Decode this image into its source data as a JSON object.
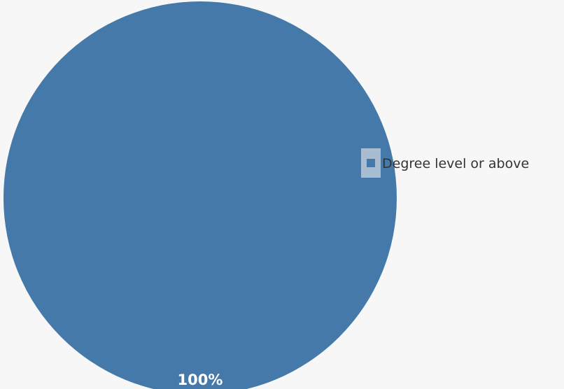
{
  "chart_data": {
    "type": "pie",
    "title": "",
    "slices": [
      {
        "label": "Degree level or above",
        "value": 100,
        "display": "100%",
        "color": "#4479a9"
      }
    ],
    "legend": {
      "position": "right",
      "highlighted": true
    }
  },
  "colors": {
    "background": "#f7f7f7",
    "legend_highlight": "#a9bdd2"
  }
}
